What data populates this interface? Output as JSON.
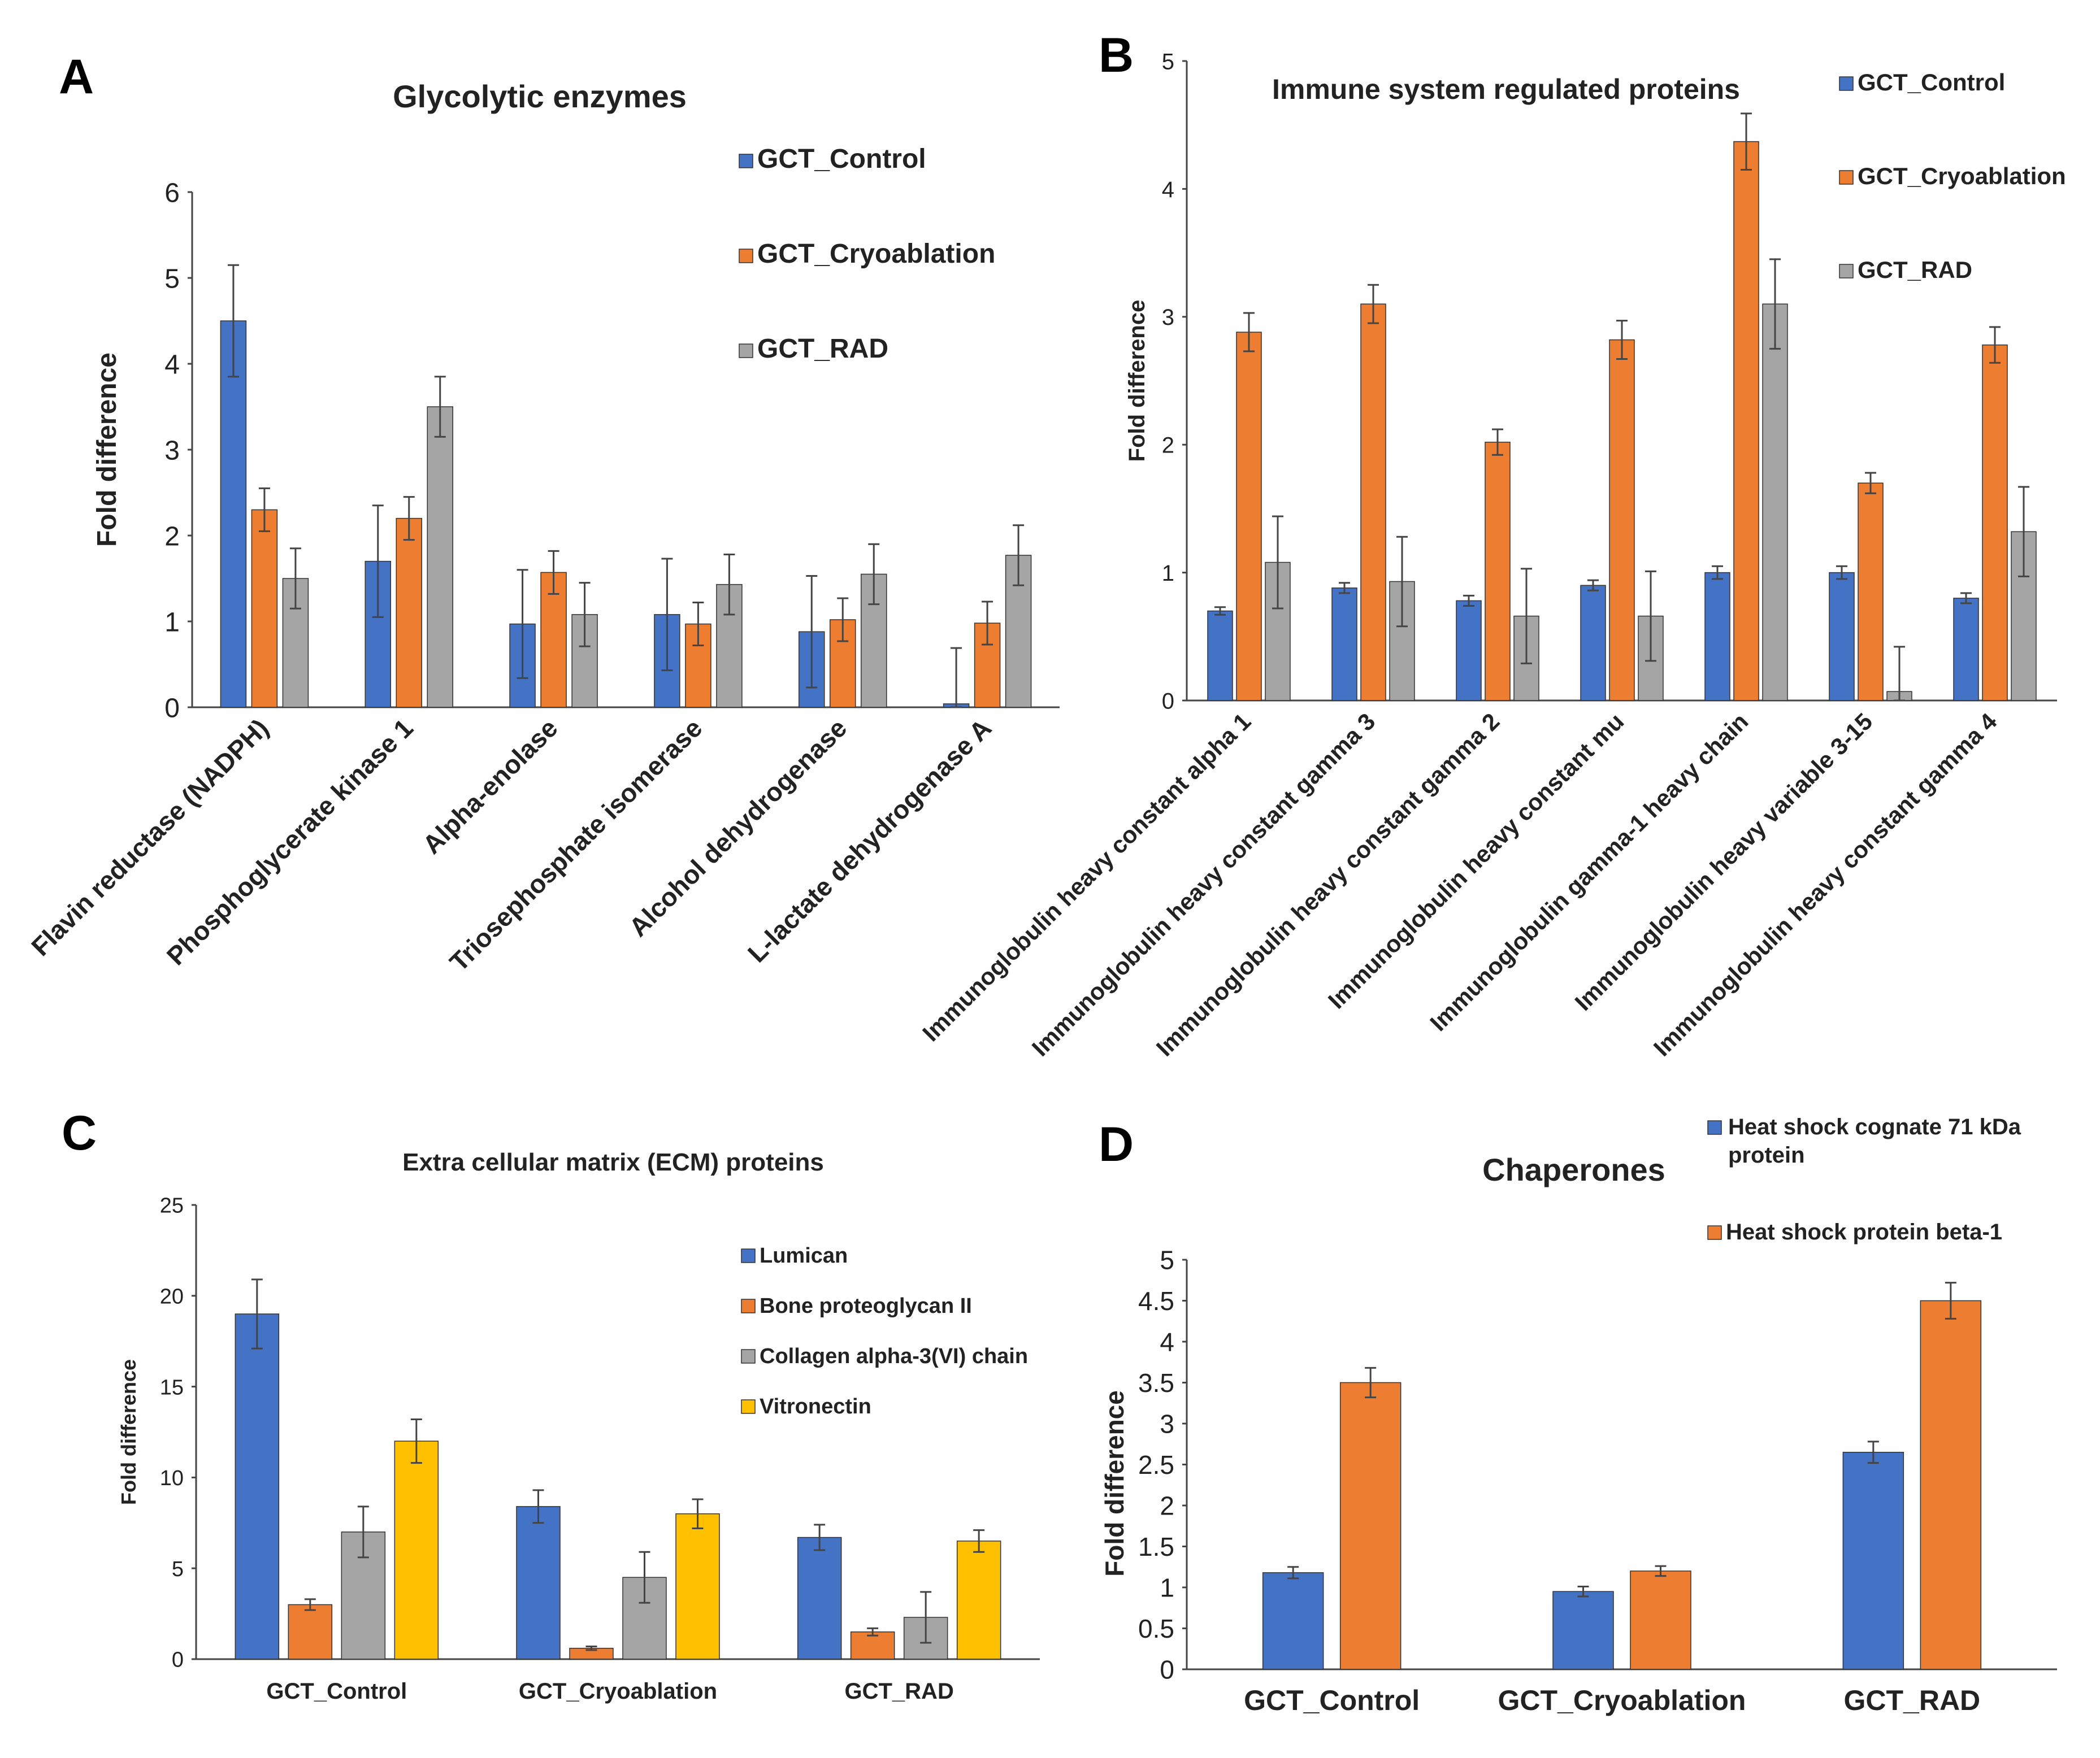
{
  "chart_data": [
    {
      "panel": "A",
      "type": "bar",
      "title": "Glycolytic enzymes",
      "ylabel": "Fold difference",
      "xlabel": "",
      "ylim": [
        0,
        6
      ],
      "yticks": [
        "0",
        "1",
        "2",
        "3",
        "4",
        "5",
        "6"
      ],
      "legend_position": "top-right",
      "categories": [
        "Flavin reductase (NADPH)",
        "Phosphoglycerate kinase 1",
        "Alpha-enolase",
        "Triosephosphate isomerase",
        "Alcohol dehydrogenase",
        "L-lactate dehydrogenase A"
      ],
      "series": [
        {
          "name": "GCT_Control",
          "color": "#4472C4",
          "values": [
            4.5,
            1.7,
            0.97,
            1.08,
            0.88,
            0.04
          ],
          "errors": [
            0.65,
            0.65,
            0.63,
            0.65,
            0.65,
            0.65
          ]
        },
        {
          "name": "GCT_Cryoablation",
          "color": "#ED7D31",
          "values": [
            2.3,
            2.2,
            1.57,
            0.97,
            1.02,
            0.98
          ],
          "errors": [
            0.25,
            0.25,
            0.25,
            0.25,
            0.25,
            0.25
          ]
        },
        {
          "name": "GCT_RAD",
          "color": "#A5A5A5",
          "values": [
            1.5,
            3.5,
            1.08,
            1.43,
            1.55,
            1.77
          ],
          "errors": [
            0.35,
            0.35,
            0.37,
            0.35,
            0.35,
            0.35
          ]
        }
      ]
    },
    {
      "panel": "B",
      "type": "bar",
      "title": "Immune system regulated proteins",
      "ylabel": "Fold difference",
      "xlabel": "",
      "ylim": [
        0,
        5
      ],
      "yticks": [
        "0",
        "1",
        "2",
        "3",
        "4",
        "5"
      ],
      "legend_position": "top-right",
      "categories": [
        "Immunoglobulin heavy constant alpha 1",
        "Immunoglobulin heavy constant gamma 3",
        "Immunoglobulin heavy constant gamma 2",
        "Immunoglobulin heavy constant mu",
        "Immunoglobulin gamma-1 heavy chain",
        "Immunoglobulin heavy variable 3-15",
        "Immunoglobulin heavy constant gamma 4"
      ],
      "series": [
        {
          "name": "GCT_Control",
          "color": "#4472C4",
          "values": [
            0.7,
            0.88,
            0.78,
            0.9,
            1.0,
            1.0,
            0.8
          ],
          "errors": [
            0.03,
            0.04,
            0.04,
            0.04,
            0.05,
            0.05,
            0.04
          ]
        },
        {
          "name": "GCT_Cryoablation",
          "color": "#ED7D31",
          "values": [
            2.88,
            3.1,
            2.02,
            2.82,
            4.37,
            1.7,
            2.78
          ],
          "errors": [
            0.15,
            0.15,
            0.1,
            0.15,
            0.22,
            0.08,
            0.14
          ]
        },
        {
          "name": "GCT_RAD",
          "color": "#A5A5A5",
          "values": [
            1.08,
            0.93,
            0.66,
            0.66,
            3.1,
            0.07,
            1.32
          ],
          "errors": [
            0.36,
            0.35,
            0.37,
            0.35,
            0.35,
            0.35,
            0.35
          ]
        }
      ]
    },
    {
      "panel": "C",
      "type": "bar",
      "title": "Extra cellular matrix (ECM) proteins",
      "ylabel": "Fold difference",
      "xlabel": "",
      "ylim": [
        0,
        25
      ],
      "yticks": [
        "0",
        "5",
        "10",
        "15",
        "20",
        "25"
      ],
      "legend_position": "top-right",
      "categories": [
        "GCT_Control",
        "GCT_Cryoablation",
        "GCT_RAD"
      ],
      "series": [
        {
          "name": "Lumican",
          "color": "#4472C4",
          "values": [
            19.0,
            8.4,
            6.7
          ],
          "errors": [
            1.9,
            0.9,
            0.7
          ]
        },
        {
          "name": "Bone proteoglycan II",
          "color": "#ED7D31",
          "values": [
            3.0,
            0.6,
            1.5
          ],
          "errors": [
            0.3,
            0.1,
            0.2
          ]
        },
        {
          "name": "Collagen alpha-3(VI) chain",
          "color": "#A5A5A5",
          "values": [
            7.0,
            4.5,
            2.3
          ],
          "errors": [
            1.4,
            1.4,
            1.4
          ]
        },
        {
          "name": "Vitronectin",
          "color": "#FFC000",
          "values": [
            12.0,
            8.0,
            6.5
          ],
          "errors": [
            1.2,
            0.8,
            0.6
          ]
        }
      ]
    },
    {
      "panel": "D",
      "type": "bar",
      "title": "Chaperones",
      "ylabel": "Fold difference",
      "xlabel": "",
      "ylim": [
        0,
        5
      ],
      "yticks": [
        "0",
        "0.5",
        "1",
        "1.5",
        "2",
        "2.5",
        "3",
        "3.5",
        "4",
        "4.5",
        "5"
      ],
      "legend_position": "top-right",
      "categories": [
        "GCT_Control",
        "GCT_Cryoablation",
        "GCT_RAD"
      ],
      "series": [
        {
          "name": "Heat shock cognate 71 kDa protein",
          "color": "#4472C4",
          "values": [
            1.18,
            0.95,
            2.65
          ],
          "errors": [
            0.07,
            0.06,
            0.13
          ]
        },
        {
          "name": "Heat shock protein beta-1",
          "color": "#ED7D31",
          "values": [
            3.5,
            1.2,
            4.5
          ],
          "errors": [
            0.18,
            0.06,
            0.22
          ]
        }
      ]
    }
  ]
}
